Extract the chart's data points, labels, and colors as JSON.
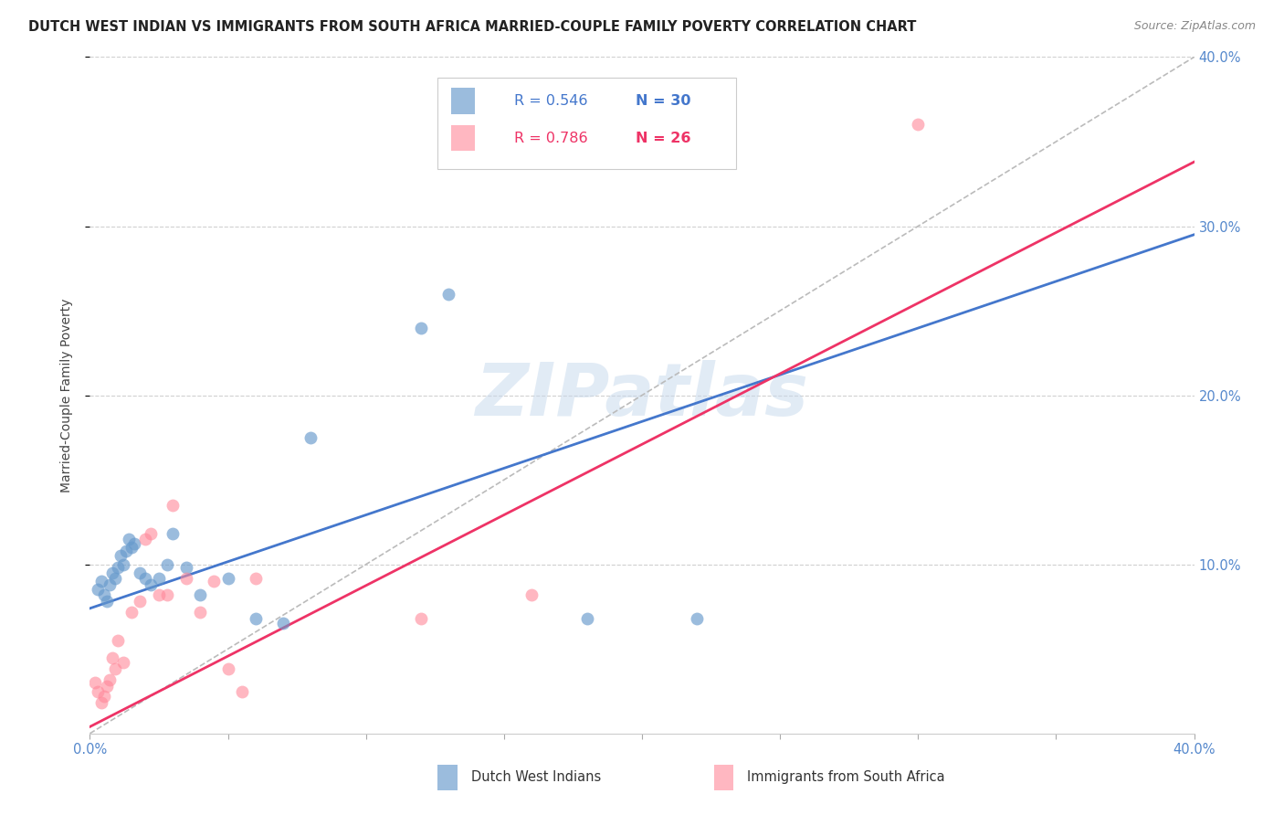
{
  "title": "DUTCH WEST INDIAN VS IMMIGRANTS FROM SOUTH AFRICA MARRIED-COUPLE FAMILY POVERTY CORRELATION CHART",
  "source": "Source: ZipAtlas.com",
  "ylabel": "Married-Couple Family Poverty",
  "xlim": [
    0,
    0.4
  ],
  "ylim": [
    0,
    0.4
  ],
  "background_color": "#ffffff",
  "grid_color": "#d0d0d0",
  "watermark": "ZIPatlas",
  "blue_color": "#7bafd4",
  "pink_color": "#f4a0b0",
  "blue_scatter_color": "#6699cc",
  "pink_scatter_color": "#ff8899",
  "blue_line_color": "#4477cc",
  "pink_line_color": "#ee3366",
  "dashed_line_color": "#bbbbbb",
  "legend_R_blue": "0.546",
  "legend_N_blue": "30",
  "legend_R_pink": "0.786",
  "legend_N_pink": "26",
  "label_blue": "Dutch West Indians",
  "label_pink": "Immigrants from South Africa",
  "title_color": "#222222",
  "source_color": "#888888",
  "axis_tick_color": "#5588cc",
  "blue_points_x": [
    0.003,
    0.004,
    0.005,
    0.006,
    0.007,
    0.008,
    0.009,
    0.01,
    0.011,
    0.012,
    0.013,
    0.014,
    0.015,
    0.016,
    0.018,
    0.02,
    0.022,
    0.025,
    0.028,
    0.03,
    0.035,
    0.04,
    0.05,
    0.06,
    0.07,
    0.08,
    0.12,
    0.13,
    0.18,
    0.22
  ],
  "blue_points_y": [
    0.085,
    0.09,
    0.082,
    0.078,
    0.088,
    0.095,
    0.092,
    0.098,
    0.105,
    0.1,
    0.108,
    0.115,
    0.11,
    0.112,
    0.095,
    0.092,
    0.088,
    0.092,
    0.1,
    0.118,
    0.098,
    0.082,
    0.092,
    0.068,
    0.065,
    0.175,
    0.24,
    0.26,
    0.068,
    0.068
  ],
  "pink_points_x": [
    0.002,
    0.003,
    0.004,
    0.005,
    0.006,
    0.007,
    0.008,
    0.009,
    0.01,
    0.012,
    0.015,
    0.018,
    0.02,
    0.022,
    0.025,
    0.028,
    0.03,
    0.035,
    0.04,
    0.045,
    0.05,
    0.055,
    0.06,
    0.12,
    0.16,
    0.3
  ],
  "pink_points_y": [
    0.03,
    0.025,
    0.018,
    0.022,
    0.028,
    0.032,
    0.045,
    0.038,
    0.055,
    0.042,
    0.072,
    0.078,
    0.115,
    0.118,
    0.082,
    0.082,
    0.135,
    0.092,
    0.072,
    0.09,
    0.038,
    0.025,
    0.092,
    0.068,
    0.082,
    0.36
  ],
  "title_fontsize": 10.5,
  "source_fontsize": 9,
  "axis_label_fontsize": 10,
  "tick_fontsize": 10.5,
  "legend_fontsize": 11.5
}
